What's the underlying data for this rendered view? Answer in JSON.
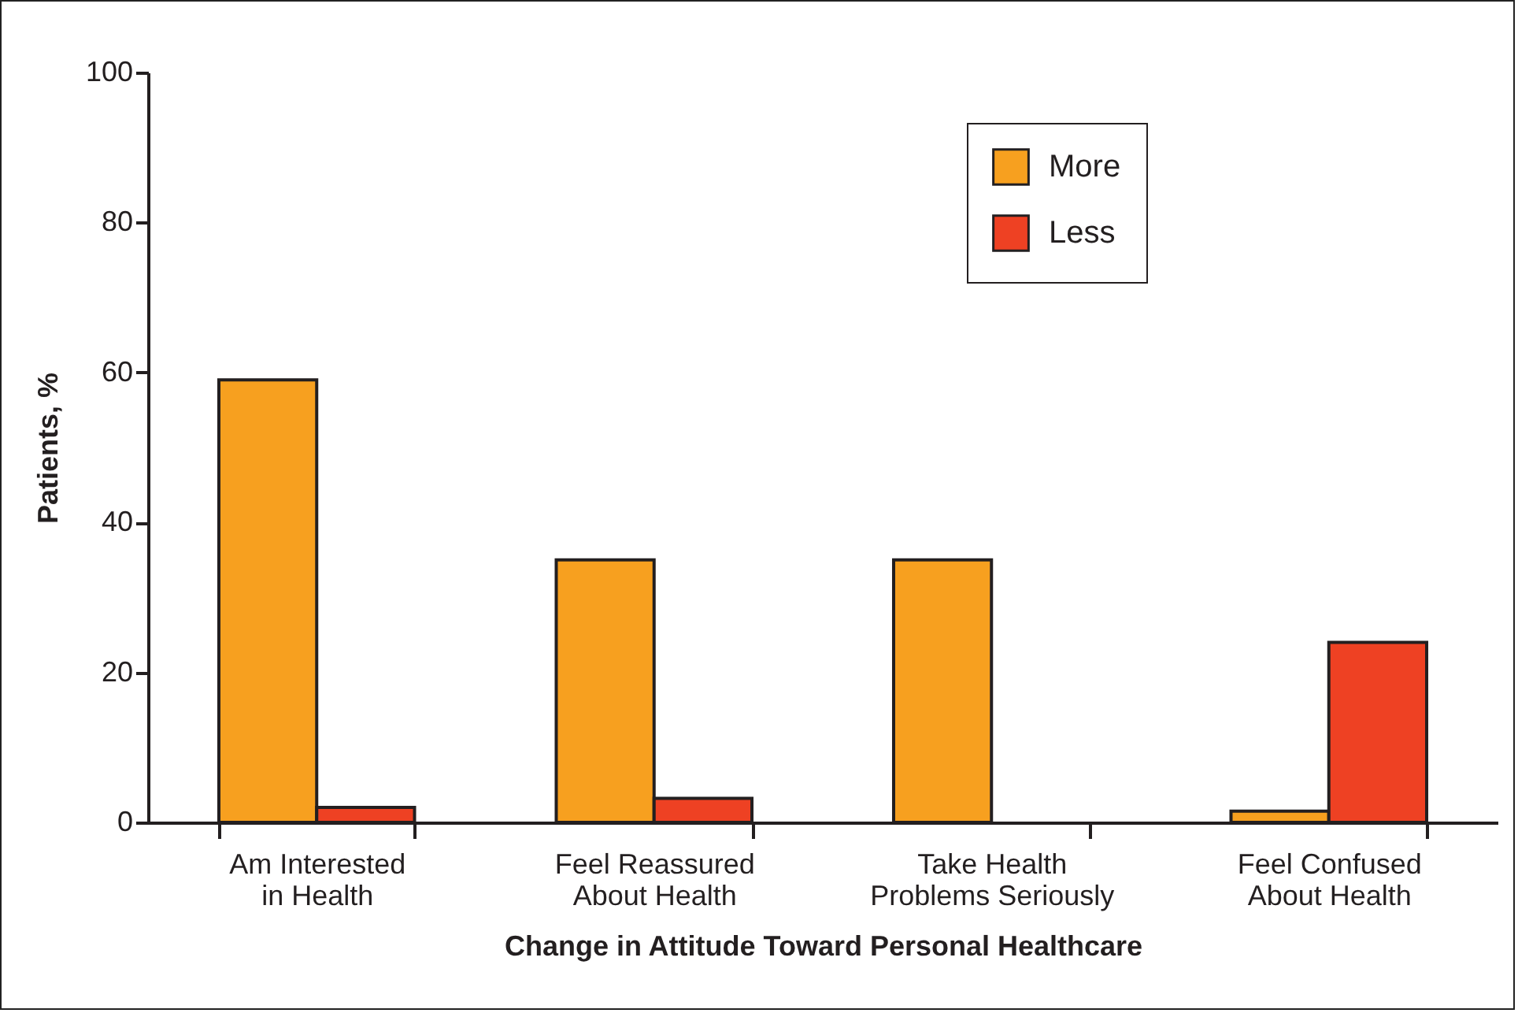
{
  "chart_data": {
    "type": "bar",
    "xlabel": "Change in Attitude Toward Personal Healthcare",
    "ylabel": "Patients, %",
    "categories": [
      "Am Interested\nin Health",
      "Feel Reassured\nAbout Health",
      "Take Health\nProblems Seriously",
      "Feel Confused\nAbout Health"
    ],
    "series": [
      {
        "name": "More",
        "color": "#f7a01f",
        "values": [
          59,
          35,
          35,
          1.5
        ]
      },
      {
        "name": "Less",
        "color": "#ee4123",
        "values": [
          2,
          3.2,
          null,
          24
        ]
      }
    ],
    "ylim": [
      0,
      100
    ],
    "yticks": [
      0,
      20,
      40,
      60,
      80,
      100
    ],
    "grid": false,
    "legend": "top right"
  }
}
